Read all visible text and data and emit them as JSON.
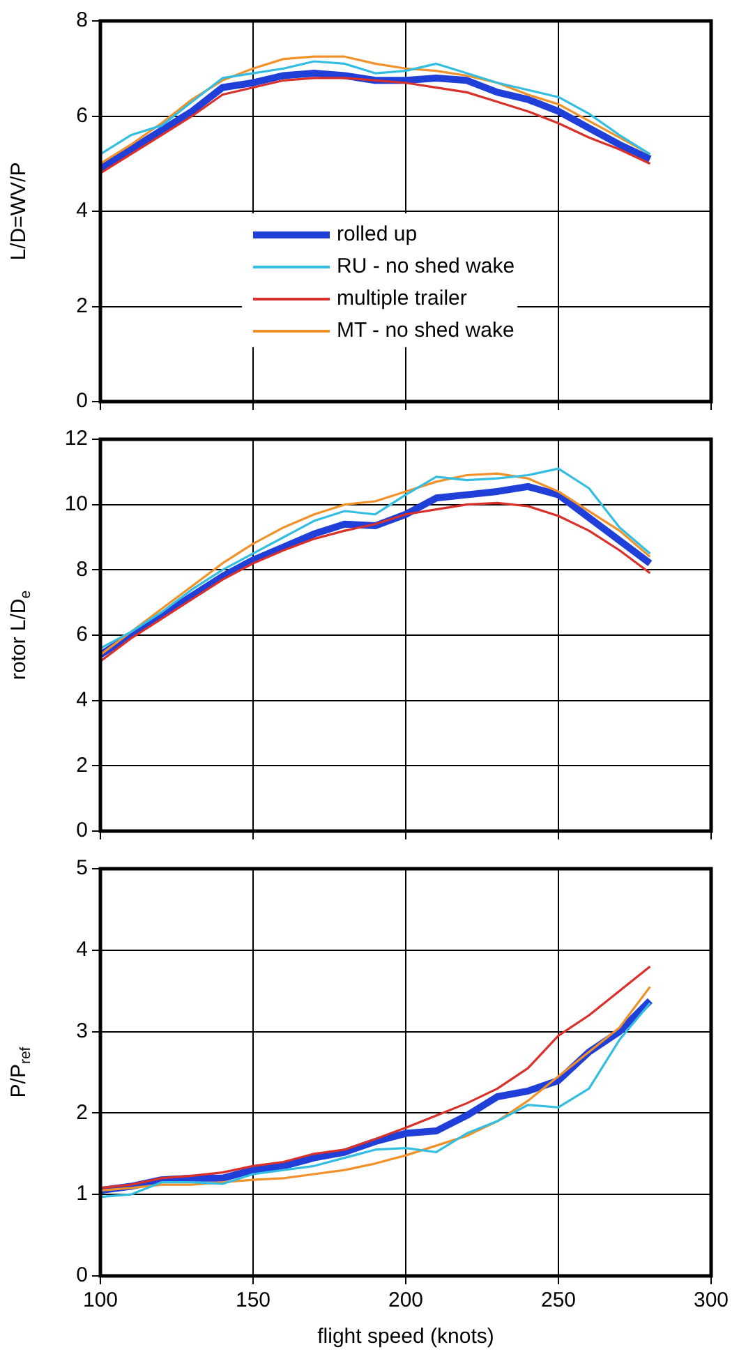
{
  "chart_data": [
    {
      "type": "line",
      "ylabel": "L/D=WV/P",
      "x": [
        100,
        110,
        120,
        130,
        140,
        150,
        160,
        170,
        180,
        190,
        200,
        210,
        220,
        230,
        240,
        250,
        260,
        270,
        280
      ],
      "xlim": [
        100,
        300
      ],
      "xticks": [
        100,
        150,
        200,
        250,
        300
      ],
      "ylim": [
        0,
        8
      ],
      "yticks": [
        0,
        2,
        4,
        6,
        8
      ],
      "grid": true,
      "legend": "center",
      "tick_labels": "y",
      "series": [
        {
          "name": "rolled up",
          "color": "#1f3fd8",
          "values": [
            4.9,
            5.3,
            5.7,
            6.1,
            6.6,
            6.7,
            6.85,
            6.9,
            6.85,
            6.75,
            6.75,
            6.8,
            6.75,
            6.5,
            6.35,
            6.1,
            5.75,
            5.4,
            5.1
          ]
        },
        {
          "name": "RU - no shed wake",
          "color": "#33bde0",
          "values": [
            5.2,
            5.6,
            5.8,
            6.3,
            6.8,
            6.9,
            7.0,
            7.15,
            7.1,
            6.9,
            6.95,
            7.1,
            6.9,
            6.7,
            6.55,
            6.4,
            6.05,
            5.6,
            5.2
          ]
        },
        {
          "name": "multiple trailer",
          "color": "#d9302a",
          "values": [
            4.8,
            5.2,
            5.6,
            6.0,
            6.45,
            6.6,
            6.75,
            6.8,
            6.8,
            6.75,
            6.7,
            6.6,
            6.5,
            6.3,
            6.1,
            5.85,
            5.55,
            5.3,
            5.0
          ]
        },
        {
          "name": "MT - no shed wake",
          "color": "#f0912a",
          "values": [
            5.0,
            5.4,
            5.85,
            6.35,
            6.75,
            7.0,
            7.2,
            7.25,
            7.25,
            7.1,
            7.0,
            6.95,
            6.85,
            6.7,
            6.45,
            6.25,
            5.9,
            5.55,
            5.2
          ]
        }
      ]
    },
    {
      "type": "line",
      "ylabel": "rotor L/D$_{e}$",
      "x": [
        100,
        110,
        120,
        130,
        140,
        150,
        160,
        170,
        180,
        190,
        200,
        210,
        220,
        230,
        240,
        250,
        260,
        270,
        280
      ],
      "xlim": [
        100,
        300
      ],
      "xticks": [
        100,
        150,
        200,
        250,
        300
      ],
      "ylim": [
        0,
        12
      ],
      "yticks": [
        0,
        2,
        4,
        6,
        8,
        10,
        12
      ],
      "grid": true,
      "tick_labels": "y",
      "series": [
        {
          "color": "#1f3fd8",
          "values": [
            5.4,
            6.0,
            6.6,
            7.2,
            7.8,
            8.3,
            8.7,
            9.1,
            9.4,
            9.35,
            9.7,
            10.2,
            10.3,
            10.4,
            10.55,
            10.3,
            9.6,
            8.9,
            8.2
          ]
        },
        {
          "color": "#33bde0",
          "values": [
            5.6,
            6.1,
            6.7,
            7.4,
            8.0,
            8.5,
            9.0,
            9.5,
            9.8,
            9.7,
            10.3,
            10.85,
            10.75,
            10.8,
            10.9,
            11.1,
            10.5,
            9.3,
            8.5
          ]
        },
        {
          "color": "#d9302a",
          "values": [
            5.2,
            5.9,
            6.5,
            7.1,
            7.7,
            8.2,
            8.6,
            8.95,
            9.2,
            9.4,
            9.7,
            9.85,
            10.0,
            10.05,
            9.95,
            9.65,
            9.2,
            8.6,
            7.9
          ]
        },
        {
          "color": "#f0912a",
          "values": [
            5.4,
            6.1,
            6.8,
            7.5,
            8.2,
            8.8,
            9.3,
            9.7,
            10.0,
            10.1,
            10.4,
            10.7,
            10.9,
            10.95,
            10.8,
            10.4,
            9.8,
            9.2,
            8.4
          ]
        }
      ]
    },
    {
      "type": "line",
      "ylabel": "P/P$_{ref}$",
      "xlabel": "flight speed (knots)",
      "x": [
        100,
        110,
        120,
        130,
        140,
        150,
        160,
        170,
        180,
        190,
        200,
        210,
        220,
        230,
        240,
        250,
        260,
        270,
        280
      ],
      "xlim": [
        100,
        300
      ],
      "xticks": [
        100,
        150,
        200,
        250,
        300
      ],
      "ylim": [
        0,
        5
      ],
      "yticks": [
        0,
        1,
        2,
        3,
        4,
        5
      ],
      "grid": true,
      "series": [
        {
          "color": "#1f3fd8",
          "values": [
            1.05,
            1.1,
            1.18,
            1.2,
            1.2,
            1.3,
            1.35,
            1.45,
            1.52,
            1.65,
            1.75,
            1.78,
            1.97,
            2.2,
            2.27,
            2.4,
            2.75,
            3.0,
            3.38
          ]
        },
        {
          "color": "#33bde0",
          "values": [
            0.97,
            1.0,
            1.15,
            1.15,
            1.13,
            1.25,
            1.3,
            1.35,
            1.45,
            1.55,
            1.57,
            1.52,
            1.75,
            1.9,
            2.1,
            2.07,
            2.3,
            2.9,
            3.35
          ]
        },
        {
          "color": "#d9302a",
          "values": [
            1.08,
            1.12,
            1.2,
            1.23,
            1.27,
            1.35,
            1.4,
            1.5,
            1.55,
            1.68,
            1.82,
            1.97,
            2.12,
            2.3,
            2.55,
            2.95,
            3.2,
            3.5,
            3.8
          ]
        },
        {
          "color": "#f0912a",
          "values": [
            1.05,
            1.08,
            1.12,
            1.12,
            1.15,
            1.18,
            1.2,
            1.25,
            1.3,
            1.38,
            1.48,
            1.6,
            1.72,
            1.9,
            2.15,
            2.45,
            2.75,
            3.05,
            3.55
          ]
        }
      ]
    }
  ]
}
